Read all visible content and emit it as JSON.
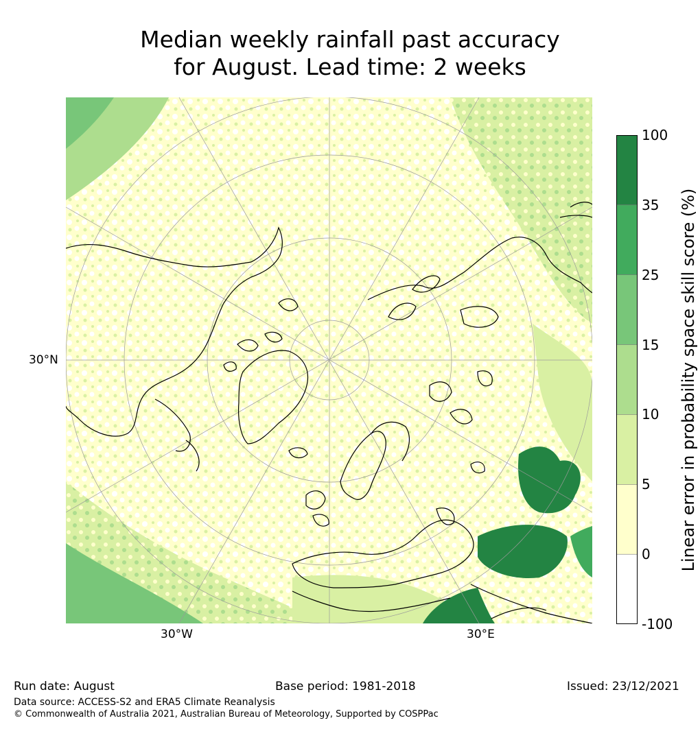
{
  "title": {
    "line1": "Median weekly rainfall past accuracy",
    "line2": "for August. Lead time: 2 weeks"
  },
  "map": {
    "projection": "north-polar-stereographic",
    "lat_label": "30°N",
    "lon_labels": [
      "30°W",
      "30°E"
    ],
    "land_outline_color": "#000000",
    "graticule_color": "#9a9a9a"
  },
  "colorbar": {
    "label": "Linear error in probability space skill score (%)",
    "ticks": [
      "100",
      "35",
      "25",
      "15",
      "10",
      "5",
      "0",
      "-100"
    ],
    "bins": [
      {
        "from": 35,
        "to": 100,
        "color": "#238443"
      },
      {
        "from": 25,
        "to": 35,
        "color": "#41ab5d"
      },
      {
        "from": 15,
        "to": 25,
        "color": "#78c679"
      },
      {
        "from": 10,
        "to": 15,
        "color": "#addd8e"
      },
      {
        "from": 5,
        "to": 10,
        "color": "#d9f0a3"
      },
      {
        "from": 0,
        "to": 5,
        "color": "#ffffcc"
      },
      {
        "from": -100,
        "to": 0,
        "color": "#ffffff"
      }
    ]
  },
  "footer": {
    "run_date": "Run date: August",
    "base_period": "Base period: 1981-2018",
    "issued": "Issued: 23/12/2021",
    "data_source": "Data source: ACCESS-S2 and ERA5 Climate Reanalysis",
    "copyright": "© Commonwealth of Australia 2021, Australian Bureau of Meteorology, Supported by COSPPac"
  }
}
